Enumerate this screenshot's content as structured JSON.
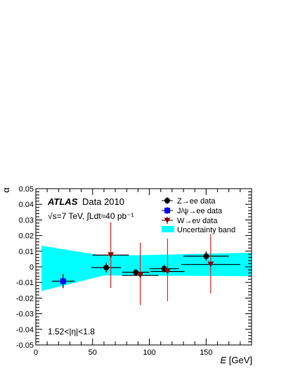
{
  "chart_data": {
    "type": "scatter",
    "title": "",
    "xlabel": "E [GeV]",
    "xlabel_italic": "E",
    "xlabel_unit": " [GeV]",
    "ylabel": "α",
    "xlim": [
      0,
      190
    ],
    "ylim": [
      -0.05,
      0.05
    ],
    "x_ticks": [
      0,
      50,
      100,
      150
    ],
    "x_tick_labels": [
      "0",
      "50",
      "100",
      "150"
    ],
    "y_ticks": [
      -0.05,
      -0.04,
      -0.03,
      -0.02,
      -0.01,
      0,
      0.01,
      0.02,
      0.03,
      0.04,
      0.05
    ],
    "y_tick_labels": [
      "-0.05",
      "-0.04",
      "-0.03",
      "-0.02",
      "-0.01",
      "0",
      "0.01",
      "0.02",
      "0.03",
      "0.04",
      "0.05"
    ],
    "grid": false,
    "legend_position": "top-right",
    "annotations": {
      "atlas": "ATLAS",
      "dataset": "Data 2010",
      "energy": "√s=7 TeV, ∫Ldt≈40 pb⁻¹",
      "eta_range": "1.52<|η|<1.8"
    },
    "uncertainty_band": {
      "name": "Uncertainty band",
      "color": "#00ffff",
      "x": [
        5,
        60,
        190
      ],
      "upper": [
        0.0135,
        0.007,
        0.009
      ],
      "lower": [
        -0.0155,
        -0.0055,
        -0.006
      ]
    },
    "series": [
      {
        "name": "Z→ee data",
        "marker": "circle",
        "color": "#000000",
        "points": [
          {
            "x": 62,
            "y": -0.0005,
            "xerr": 13,
            "yerr_low": 0.003,
            "yerr_high": 0.003
          },
          {
            "x": 88,
            "y": -0.0035,
            "xerr": 12,
            "yerr_low": 0.002,
            "yerr_high": 0.002
          },
          {
            "x": 113,
            "y": -0.0012,
            "xerr": 13,
            "yerr_low": 0.0025,
            "yerr_high": 0.0025
          },
          {
            "x": 150,
            "y": 0.0068,
            "xerr": 20,
            "yerr_low": 0.003,
            "yerr_high": 0.003
          }
        ]
      },
      {
        "name": "J/ψ→ee data",
        "marker": "square",
        "color": "#0000ff",
        "points": [
          {
            "x": 24,
            "y": -0.0092,
            "xerr": 10,
            "yerr_low": 0.0045,
            "yerr_high": 0.0045
          }
        ]
      },
      {
        "name": "W→eν data",
        "marker": "triangle-down",
        "color": "#8b0000",
        "errcolor": "#d62728",
        "points": [
          {
            "x": 66,
            "y": 0.0075,
            "xerr": 16,
            "yerr_low": 0.021,
            "yerr_high": 0.021
          },
          {
            "x": 92,
            "y": -0.0055,
            "xerr": 16,
            "yerr_low": 0.019,
            "yerr_high": 0.021
          },
          {
            "x": 116,
            "y": -0.003,
            "xerr": 15,
            "yerr_low": 0.019,
            "yerr_high": 0.021
          },
          {
            "x": 154,
            "y": 0.0015,
            "xerr": 26,
            "yerr_low": 0.0185,
            "yerr_high": 0.0195
          }
        ]
      }
    ]
  }
}
